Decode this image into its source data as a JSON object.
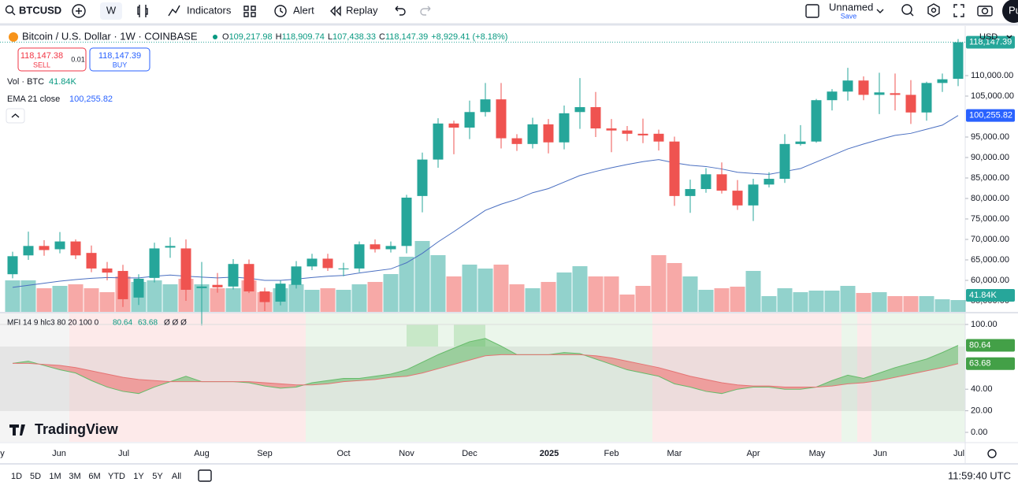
{
  "toolbar": {
    "symbol": "BTCUSD",
    "interval": "W",
    "indicators": "Indicators",
    "alert": "Alert",
    "replay": "Replay",
    "layout_name": "Unnamed",
    "save": "Save",
    "profile": "Pu"
  },
  "legend": {
    "title": "Bitcoin / U.S. Dollar · 1W · COINBASE",
    "open_label": "O",
    "open": "109,217.98",
    "high_label": "H",
    "high": "118,909.74",
    "low_label": "L",
    "low": "107,438.33",
    "close_label": "C",
    "close": "118,147.39",
    "change": "+8,929.41 (+8.18%)"
  },
  "trade": {
    "sell_price": "118,147.38",
    "sell": "SELL",
    "quantity": "0.01",
    "buy_price": "118,147.39",
    "buy": "BUY"
  },
  "indicators": {
    "volume_label": "Vol · BTC",
    "volume_value": "41.84K",
    "ema_label": "EMA 21 close",
    "ema_value": "100,255.82",
    "mfi_label": "MFI 14 9 hlc3 80 20 100 0",
    "mfi_value": "80.64",
    "mfi_ma_value": "63.68",
    "mfi_extra": "Ø Ø Ø"
  },
  "chart": {
    "currency": "USD",
    "last_price_tag": "118,147.39",
    "price_ticks": [
      {
        "value": 110000,
        "label": "110,000.00"
      },
      {
        "value": 105000,
        "label": "105,000.00"
      },
      {
        "value": 95000,
        "label": "95,000.00"
      },
      {
        "value": 90000,
        "label": "90,000.00"
      },
      {
        "value": 85000,
        "label": "85,000.00"
      },
      {
        "value": 80000,
        "label": "80,000.00"
      },
      {
        "value": 75000,
        "label": "75,000.00"
      },
      {
        "value": 70000,
        "label": "70,000.00"
      },
      {
        "value": 65000,
        "label": "65,000.00"
      },
      {
        "value": 60000,
        "label": "60,000.00"
      },
      {
        "value": 55000,
        "label": "55,000.00"
      }
    ],
    "mfi_ticks": [
      {
        "value": 100,
        "label": "100.00"
      },
      {
        "value": 40,
        "label": "40.00"
      },
      {
        "value": 20,
        "label": "20.00"
      },
      {
        "value": 0,
        "label": "0.00"
      }
    ],
    "x_labels": [
      "y",
      "Jun",
      "Jul",
      "Aug",
      "Sep",
      "Oct",
      "Nov",
      "Dec",
      "2025",
      "Feb",
      "Mar",
      "Apr",
      "May",
      "Jun",
      "Jul"
    ],
    "open": [
      61500,
      66100,
      68400,
      67600,
      69500,
      66700,
      62900,
      62300,
      55800,
      60600,
      68000,
      67800,
      58100,
      58900,
      58500,
      64000,
      57300,
      54800,
      58900,
      63400,
      65300,
      62700,
      62900,
      68800,
      67600,
      68400,
      80600,
      89500,
      98300,
      97300,
      101100,
      104200,
      94700,
      93300,
      98100,
      93700,
      101100,
      102300,
      97100,
      96600,
      95800,
      95800,
      93900,
      80600,
      82300,
      85900,
      81900,
      78300,
      83400,
      84800,
      93300,
      93900,
      104000,
      106100,
      108800,
      105300,
      105700,
      105300,
      101000,
      108200,
      109217.98
    ],
    "high": [
      67000,
      71900,
      69800,
      71800,
      70000,
      68500,
      64500,
      63800,
      61500,
      69200,
      70500,
      70000,
      64500,
      61800,
      65200,
      65100,
      58200,
      60000,
      64700,
      66500,
      66500,
      64300,
      69500,
      70000,
      69500,
      80900,
      91200,
      99600,
      99000,
      103900,
      108200,
      108200,
      95700,
      99700,
      99400,
      102700,
      109400,
      106000,
      99400,
      97700,
      99500,
      96800,
      95100,
      84600,
      87400,
      88800,
      84500,
      84800,
      86400,
      95700,
      97900,
      104300,
      106700,
      111900,
      109800,
      110700,
      110500,
      108900,
      108500,
      110500,
      118909.74
    ],
    "low": [
      60500,
      65000,
      66000,
      66600,
      65200,
      62000,
      60000,
      53500,
      54000,
      59500,
      65500,
      55000,
      49000,
      57000,
      57800,
      56900,
      52500,
      53900,
      58000,
      62500,
      62300,
      61000,
      62000,
      66800,
      66800,
      66600,
      76600,
      87500,
      90800,
      94500,
      100000,
      92200,
      91600,
      92200,
      91000,
      92000,
      97000,
      95000,
      91300,
      94000,
      93500,
      91700,
      78200,
      76500,
      81400,
      81200,
      77200,
      74500,
      82700,
      83800,
      92900,
      93600,
      101500,
      103900,
      104000,
      100600,
      101500,
      98200,
      99000,
      106000,
      107438.33
    ],
    "close": [
      65900,
      68400,
      67400,
      69500,
      66100,
      62900,
      61900,
      55400,
      60400,
      67800,
      68400,
      57700,
      58500,
      58300,
      64000,
      57300,
      54700,
      59200,
      63400,
      65300,
      63000,
      62900,
      68800,
      67600,
      68400,
      80200,
      89500,
      98300,
      97300,
      101100,
      104200,
      94700,
      93300,
      98100,
      93700,
      100800,
      102300,
      97100,
      96600,
      95800,
      95400,
      93900,
      80600,
      82300,
      85900,
      81900,
      78300,
      83400,
      84800,
      93300,
      93900,
      104000,
      106100,
      108800,
      105300,
      105900,
      105300,
      101000,
      108200,
      109100,
      118147.39
    ],
    "volume": [
      111600,
      111600,
      83700,
      92070,
      97650,
      83700,
      69750,
      125550,
      106020,
      111600,
      97650,
      117180,
      97650,
      83700,
      83700,
      111600,
      69750,
      83700,
      97650,
      78120,
      83700,
      78120,
      97650,
      106020,
      133920,
      195300,
      251100,
      200880,
      125550,
      167400,
      153450,
      167400,
      97650,
      83700,
      106020,
      139500,
      161820,
      125550,
      125550,
      61380,
      92070,
      200880,
      172980,
      125550,
      78120,
      83700,
      89280,
      145080,
      55800,
      83700,
      69750,
      75330,
      75330,
      92070,
      66960,
      69750,
      55800,
      55800,
      55800,
      44640,
      41840
    ],
    "ema": [
      58300,
      58800,
      59300,
      59800,
      60200,
      60500,
      60700,
      60600,
      60600,
      61000,
      61300,
      61000,
      60800,
      60600,
      60800,
      60500,
      60000,
      60000,
      60300,
      60700,
      61000,
      61200,
      61800,
      62300,
      62800,
      64300,
      66600,
      69400,
      71900,
      74500,
      77100,
      78600,
      79800,
      81400,
      82400,
      84000,
      85600,
      86600,
      87500,
      88300,
      89000,
      89500,
      88700,
      88100,
      87800,
      87200,
      86400,
      86100,
      85900,
      86600,
      87300,
      88900,
      90500,
      92100,
      93300,
      94400,
      95400,
      95900,
      96900,
      97900,
      100255.82
    ],
    "mfi": [
      64,
      66,
      62,
      58,
      55,
      48,
      42,
      38,
      36,
      42,
      47,
      52,
      47,
      47,
      47,
      46,
      43,
      41,
      42,
      46,
      48,
      50,
      50,
      52,
      54,
      58,
      65,
      72,
      78,
      84,
      87,
      80,
      72,
      72,
      72,
      74,
      73,
      68,
      63,
      58,
      55,
      52,
      45,
      42,
      38,
      36,
      40,
      42,
      42,
      40,
      40,
      42,
      48,
      53,
      50,
      55,
      60,
      64,
      68,
      74,
      80.64
    ],
    "mfi_ma": [
      64,
      64,
      63,
      62,
      60,
      57,
      54,
      51,
      49,
      48,
      47,
      47,
      47,
      47,
      47,
      47,
      46,
      45,
      44,
      44,
      45,
      47,
      48,
      49,
      51,
      52,
      55,
      59,
      63,
      67,
      71,
      72,
      72,
      72,
      72,
      72,
      72,
      71,
      69,
      66,
      63,
      60,
      56,
      52,
      49,
      46,
      44,
      43,
      43,
      42,
      42,
      42,
      43,
      45,
      46,
      48,
      51,
      54,
      57,
      60,
      63.68
    ]
  },
  "logo": "TradingView",
  "bottom": {
    "ranges": [
      "1D",
      "5D",
      "1M",
      "3M",
      "6M",
      "YTD",
      "1Y",
      "5Y",
      "All"
    ],
    "time": "11:59:40 UTC"
  }
}
